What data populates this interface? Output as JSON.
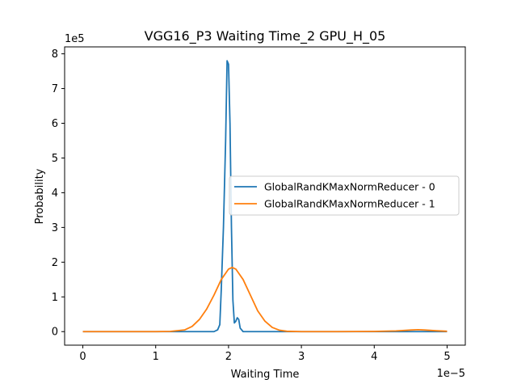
{
  "chart_data": {
    "type": "line",
    "title": "VGG16_P3 Waiting Time_2 GPU_H_05",
    "xlabel": "Waiting Time",
    "ylabel": "Probability",
    "x_multiplier": "1e−5",
    "y_multiplier": "1e5",
    "xlim": [
      -0.25,
      5.25
    ],
    "ylim": [
      -0.39,
      8.2
    ],
    "x_ticks": [
      0,
      1,
      2,
      3,
      4,
      5
    ],
    "x_tick_labels": [
      "0",
      "1",
      "2",
      "3",
      "4",
      "5"
    ],
    "y_ticks": [
      0,
      1,
      2,
      3,
      4,
      5,
      6,
      7,
      8
    ],
    "y_tick_labels": [
      "0",
      "1",
      "2",
      "3",
      "4",
      "5",
      "6",
      "7",
      "8"
    ],
    "grid": false,
    "legend": "center-right",
    "series": [
      {
        "name": "GlobalRandKMaxNormReducer - 0",
        "color": "#1f77b4",
        "x": [
          0,
          0.5,
          1.0,
          1.5,
          1.8,
          1.85,
          1.88,
          1.9,
          1.93,
          1.96,
          1.98,
          2.0,
          2.02,
          2.04,
          2.06,
          2.08,
          2.1,
          2.12,
          2.14,
          2.16,
          2.2,
          2.3,
          3.0,
          4.0,
          5.0
        ],
        "y": [
          0,
          0,
          0,
          0,
          0,
          0.05,
          0.2,
          1.2,
          3.0,
          5.5,
          7.8,
          7.7,
          6.0,
          3.0,
          0.9,
          0.25,
          0.3,
          0.4,
          0.35,
          0.1,
          0,
          0,
          0,
          0,
          0
        ]
      },
      {
        "name": "GlobalRandKMaxNormReducer - 1",
        "color": "#ff7f0e",
        "x": [
          0,
          0.5,
          1.0,
          1.2,
          1.4,
          1.5,
          1.6,
          1.7,
          1.8,
          1.9,
          2.0,
          2.05,
          2.1,
          2.2,
          2.3,
          2.4,
          2.5,
          2.6,
          2.7,
          2.8,
          3.0,
          3.5,
          4.0,
          4.3,
          4.5,
          4.6,
          4.7,
          4.85,
          5.0
        ],
        "y": [
          0,
          0,
          0,
          0.005,
          0.05,
          0.15,
          0.35,
          0.65,
          1.05,
          1.5,
          1.8,
          1.85,
          1.8,
          1.5,
          1.05,
          0.6,
          0.3,
          0.12,
          0.04,
          0.01,
          0,
          0,
          0.005,
          0.02,
          0.045,
          0.055,
          0.045,
          0.025,
          0.01
        ]
      }
    ]
  }
}
